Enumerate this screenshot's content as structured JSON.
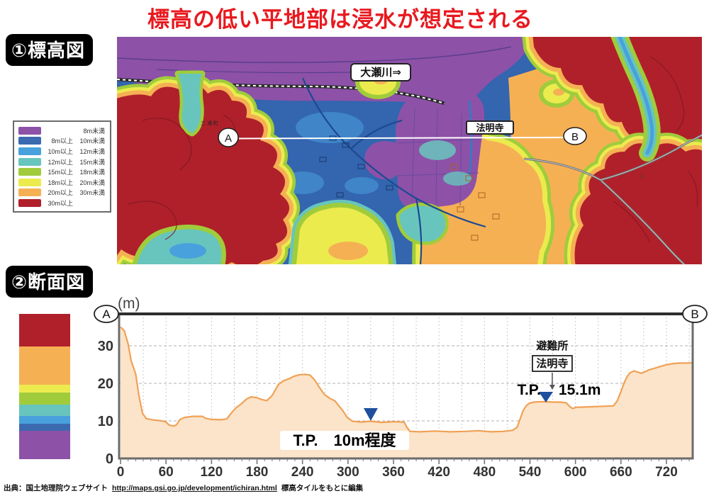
{
  "title": "標高の低い平地部は浸水が想定される",
  "sections": {
    "map_label": "①標高図",
    "profile_label": "②断面図"
  },
  "colors": {
    "title_red": "#e8191f",
    "purple": "#8d51a8",
    "blue_dark": "#3c6ab0",
    "blue": "#48a1dc",
    "teal": "#68c5bd",
    "green": "#a0cc3c",
    "yellow": "#ebeb4e",
    "orange": "#f6b054",
    "red_dark": "#b0202a",
    "urban_blue": "#3465af",
    "profile_line": "#f0a156",
    "profile_fill": "#fbe4c9",
    "triangle_blue": "#1e4f9e"
  },
  "map": {
    "legend_rows": [
      {
        "color": "purple",
        "low": "",
        "high": "8m未満"
      },
      {
        "color": "blue_dark",
        "low": "8m以上",
        "high": "10m未満"
      },
      {
        "color": "blue",
        "low": "10m以上",
        "high": "12m未満"
      },
      {
        "color": "teal",
        "low": "12m以上",
        "high": "15m未満"
      },
      {
        "color": "green",
        "low": "15m以上",
        "high": "18m未満"
      },
      {
        "color": "yellow",
        "low": "18m以上",
        "high": "20m未満"
      },
      {
        "color": "orange",
        "low": "20m以上",
        "high": "30m未満"
      },
      {
        "color": "red_dark",
        "low": "30m以上",
        "high": ""
      }
    ],
    "labels": {
      "river": "大瀬川⇒",
      "temple": "法明寺",
      "town": "三浦町",
      "contour": "50",
      "point_a": "A",
      "point_b": "B"
    }
  },
  "chart_data": {
    "type": "area",
    "unit_label": "(m)",
    "xlabel": "",
    "ylabel": "(m)",
    "xlim": [
      0,
      755
    ],
    "ylim": [
      0,
      38.5
    ],
    "x_ticks": [
      0,
      60,
      120,
      180,
      240,
      300,
      360,
      420,
      480,
      540,
      600,
      660,
      720
    ],
    "y_ticks": [
      0,
      10,
      20,
      30
    ],
    "x_minor_step": 10,
    "x_grid_step": 30,
    "endpoints": {
      "start": "A",
      "end": "B"
    },
    "profile": [
      [
        0,
        35
      ],
      [
        5,
        34
      ],
      [
        10,
        30.5
      ],
      [
        14,
        26
      ],
      [
        20,
        22.5
      ],
      [
        24,
        17
      ],
      [
        29,
        12
      ],
      [
        34,
        10.6
      ],
      [
        45,
        10.2
      ],
      [
        55,
        10
      ],
      [
        60,
        9.7
      ],
      [
        64,
        8.9
      ],
      [
        70,
        8.6
      ],
      [
        74,
        9
      ],
      [
        78,
        10.3
      ],
      [
        84,
        10.9
      ],
      [
        95,
        11.2
      ],
      [
        108,
        11.2
      ],
      [
        112,
        10.7
      ],
      [
        120,
        10.4
      ],
      [
        132,
        10.3
      ],
      [
        140,
        10.5
      ],
      [
        147,
        12.3
      ],
      [
        153,
        13.6
      ],
      [
        159,
        14.5
      ],
      [
        166,
        15.8
      ],
      [
        172,
        16.4
      ],
      [
        179,
        16.2
      ],
      [
        186,
        15.7
      ],
      [
        193,
        15.4
      ],
      [
        200,
        16.8
      ],
      [
        208,
        19.6
      ],
      [
        215,
        20.7
      ],
      [
        222,
        21.2
      ],
      [
        229,
        21.9
      ],
      [
        236,
        22.3
      ],
      [
        243,
        22.4
      ],
      [
        250,
        22.2
      ],
      [
        256,
        20.9
      ],
      [
        262,
        19
      ],
      [
        269,
        17
      ],
      [
        276,
        16
      ],
      [
        283,
        15.3
      ],
      [
        288,
        14
      ],
      [
        293,
        12.8
      ],
      [
        299,
        10.9
      ],
      [
        306,
        9.9
      ],
      [
        317,
        9.7
      ],
      [
        330,
        9.9
      ],
      [
        344,
        9.6
      ],
      [
        360,
        9.8
      ],
      [
        374,
        9.7
      ],
      [
        378,
        8.2
      ],
      [
        382,
        7.2
      ],
      [
        395,
        7.1
      ],
      [
        415,
        7.3
      ],
      [
        435,
        7.1
      ],
      [
        455,
        7.2
      ],
      [
        472,
        7.4
      ],
      [
        488,
        7.1
      ],
      [
        505,
        7.2
      ],
      [
        517,
        7.5
      ],
      [
        523,
        8.3
      ],
      [
        527,
        10.5
      ],
      [
        531,
        12.8
      ],
      [
        535,
        14
      ],
      [
        539,
        14.7
      ],
      [
        545,
        15
      ],
      [
        553,
        15.1
      ],
      [
        562,
        15.1
      ],
      [
        571,
        15
      ],
      [
        580,
        15
      ],
      [
        588,
        14.8
      ],
      [
        592,
        13.9
      ],
      [
        596,
        13.3
      ],
      [
        601,
        13.6
      ],
      [
        612,
        13.7
      ],
      [
        625,
        13.8
      ],
      [
        638,
        13.9
      ],
      [
        650,
        14
      ],
      [
        655,
        15.3
      ],
      [
        660,
        17.8
      ],
      [
        664,
        20
      ],
      [
        668,
        21.8
      ],
      [
        672,
        22.8
      ],
      [
        677,
        23.3
      ],
      [
        682,
        23
      ],
      [
        687,
        22.7
      ],
      [
        692,
        23.1
      ],
      [
        697,
        23.6
      ],
      [
        704,
        24
      ],
      [
        712,
        24.5
      ],
      [
        719,
        24.9
      ],
      [
        727,
        25.2
      ],
      [
        737,
        25.4
      ],
      [
        747,
        25.4
      ],
      [
        755,
        25.5
      ]
    ],
    "annotations": {
      "valley": {
        "label": "T.P.　10m程度",
        "marker_distance": 330
      },
      "shelter": {
        "title": "避難所",
        "name": "法明寺",
        "prefix": "T.P.",
        "value": "15.1m",
        "elevation_m": 15.1,
        "marker_distance": 561
      }
    }
  },
  "attribution": {
    "prefix": "出典：国土地理院ウェブサイト",
    "url": "http://maps.gsi.go.jp/development/ichiran.html",
    "suffix": "標高タイルをもとに編集"
  }
}
